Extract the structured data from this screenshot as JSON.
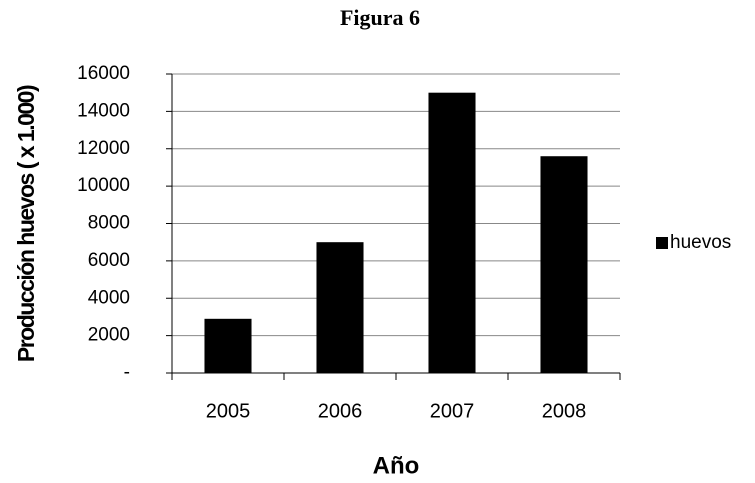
{
  "chart_data": {
    "type": "bar",
    "title": "Figura 6",
    "x_label": "Año",
    "y_label": "Producción huevos ( x 1.000)",
    "categories": [
      "2005",
      "2006",
      "2007",
      "2008"
    ],
    "series": [
      {
        "name": "huevos",
        "color": "#000000",
        "values": [
          2900,
          7000,
          15000,
          11600
        ]
      }
    ],
    "ylim": [
      0,
      16000
    ],
    "yticks": [
      {
        "value": 0,
        "label": "-"
      },
      2000,
      4000,
      6000,
      8000,
      10000,
      12000,
      14000,
      16000
    ],
    "grid": true,
    "legend": "right"
  }
}
